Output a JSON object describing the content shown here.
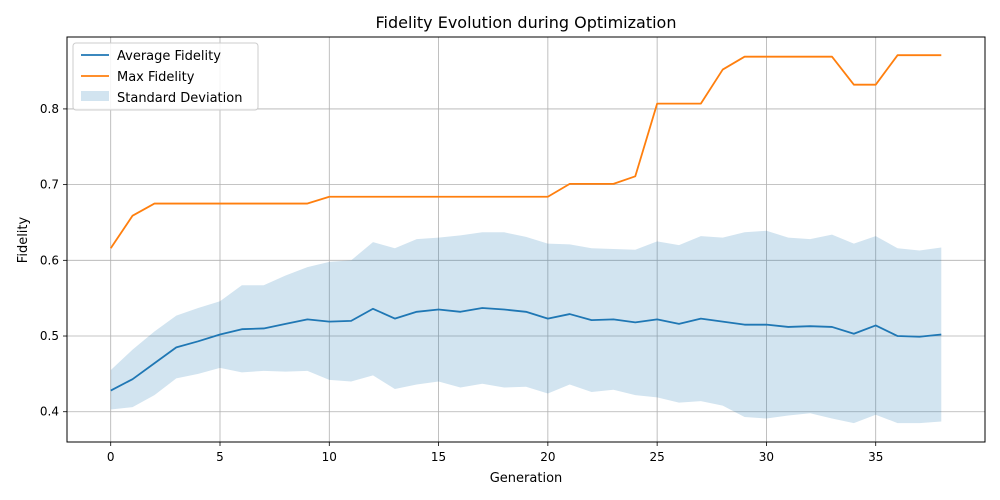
{
  "chart_data": {
    "type": "line",
    "title": "Fidelity Evolution during Optimization",
    "xlabel": "Generation",
    "ylabel": "Fidelity",
    "xlim": [
      -2,
      40
    ],
    "ylim": [
      0.36,
      0.895
    ],
    "xticks": [
      0,
      5,
      10,
      15,
      20,
      25,
      30,
      35
    ],
    "yticks": [
      0.4,
      0.5,
      0.6,
      0.7,
      0.8
    ],
    "grid": true,
    "legend_position": "top-left",
    "x": [
      0,
      1,
      2,
      3,
      4,
      5,
      6,
      7,
      8,
      9,
      10,
      11,
      12,
      13,
      14,
      15,
      16,
      17,
      18,
      19,
      20,
      21,
      22,
      23,
      24,
      25,
      26,
      27,
      28,
      29,
      30,
      31,
      32,
      33,
      34,
      35,
      36,
      37,
      38
    ],
    "series": [
      {
        "name": "Average Fidelity",
        "color": "#1f77b4",
        "values": [
          0.428,
          0.443,
          0.464,
          0.485,
          0.493,
          0.502,
          0.509,
          0.51,
          0.516,
          0.522,
          0.519,
          0.52,
          0.536,
          0.523,
          0.532,
          0.535,
          0.532,
          0.537,
          0.535,
          0.532,
          0.523,
          0.529,
          0.521,
          0.522,
          0.518,
          0.522,
          0.516,
          0.523,
          0.519,
          0.515,
          0.515,
          0.512,
          0.513,
          0.512,
          0.503,
          0.514,
          0.5,
          0.499,
          0.502
        ]
      },
      {
        "name": "Max Fidelity",
        "color": "#ff7f0e",
        "values": [
          0.616,
          0.659,
          0.675,
          0.675,
          0.675,
          0.675,
          0.675,
          0.675,
          0.675,
          0.675,
          0.684,
          0.684,
          0.684,
          0.684,
          0.684,
          0.684,
          0.684,
          0.684,
          0.684,
          0.684,
          0.684,
          0.701,
          0.701,
          0.701,
          0.711,
          0.807,
          0.807,
          0.807,
          0.852,
          0.869,
          0.869,
          0.869,
          0.869,
          0.869,
          0.832,
          0.832,
          0.871,
          0.871,
          0.871
        ]
      }
    ],
    "band": {
      "name": "Standard Deviation",
      "color": "#1f77b4",
      "opacity": 0.2,
      "upper": [
        0.455,
        0.482,
        0.506,
        0.527,
        0.537,
        0.546,
        0.567,
        0.567,
        0.58,
        0.591,
        0.598,
        0.6,
        0.624,
        0.616,
        0.628,
        0.63,
        0.633,
        0.637,
        0.637,
        0.631,
        0.622,
        0.621,
        0.616,
        0.615,
        0.614,
        0.625,
        0.62,
        0.632,
        0.63,
        0.637,
        0.639,
        0.63,
        0.628,
        0.634,
        0.622,
        0.632,
        0.616,
        0.613,
        0.617
      ],
      "lower": [
        0.403,
        0.406,
        0.422,
        0.444,
        0.45,
        0.458,
        0.452,
        0.454,
        0.453,
        0.454,
        0.442,
        0.44,
        0.448,
        0.43,
        0.436,
        0.44,
        0.432,
        0.437,
        0.432,
        0.433,
        0.424,
        0.436,
        0.426,
        0.429,
        0.422,
        0.419,
        0.412,
        0.414,
        0.408,
        0.393,
        0.391,
        0.395,
        0.398,
        0.391,
        0.385,
        0.396,
        0.385,
        0.385,
        0.387
      ]
    }
  }
}
